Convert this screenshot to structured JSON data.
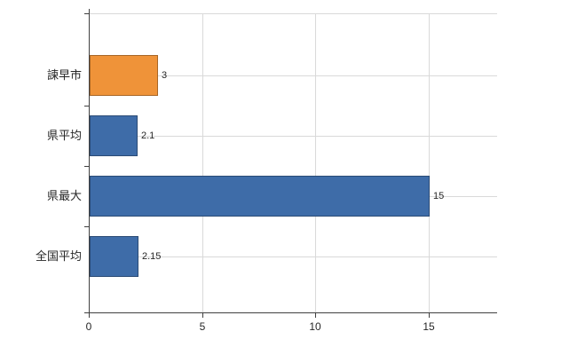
{
  "chart_data": {
    "type": "bar",
    "orientation": "horizontal",
    "title": "",
    "categories": [
      "諫早市",
      "県平均",
      "県最大",
      "全国平均"
    ],
    "values": [
      3,
      2.1,
      15,
      2.15
    ],
    "value_labels": [
      "3",
      "2.1",
      "15",
      "2.15"
    ],
    "bar_colors": [
      "#ef9339",
      "#3e6ca8",
      "#3e6ca8",
      "#3e6ca8"
    ],
    "xlim": [
      0,
      18
    ],
    "xticks": [
      "0",
      "5",
      "10",
      "15"
    ],
    "xtick_values": [
      0,
      5,
      10,
      15
    ],
    "grid": true,
    "legend": "none",
    "colors": {
      "grid": "#d9d9d9",
      "axis": "#404040",
      "text": "#262626",
      "background": "#ffffff"
    }
  }
}
